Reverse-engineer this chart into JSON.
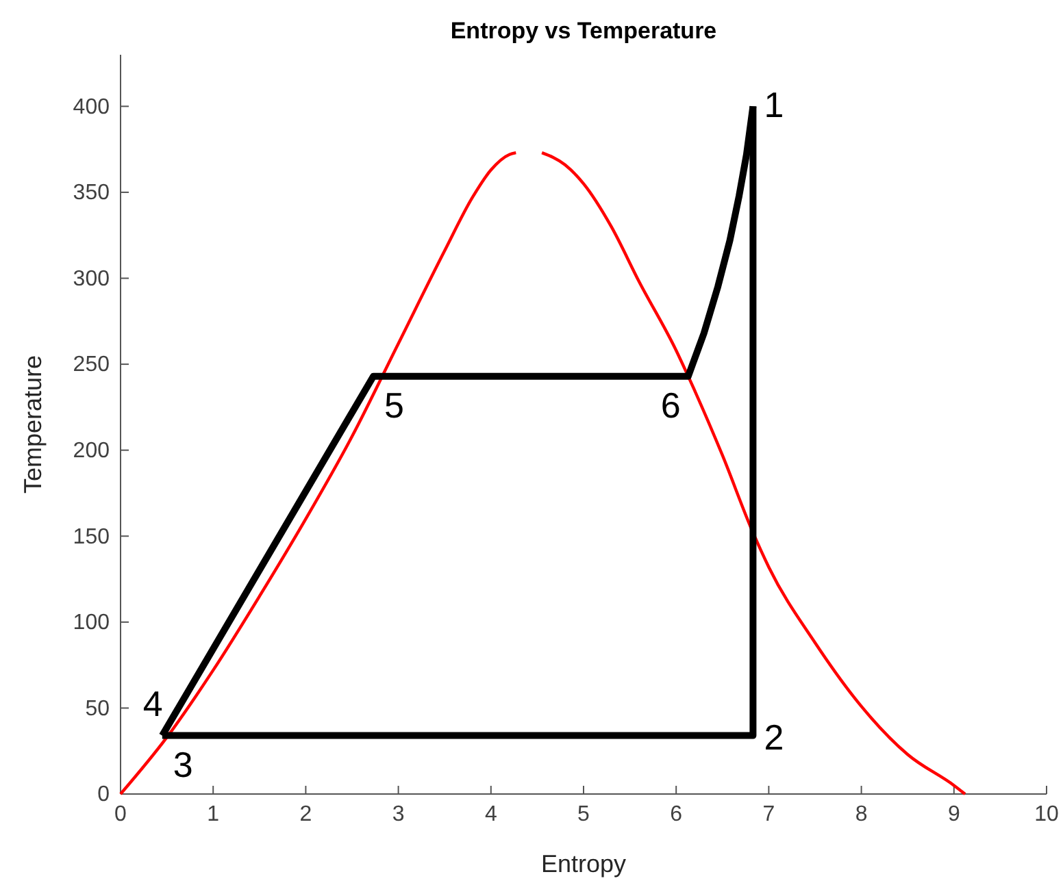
{
  "chart_data": {
    "type": "line",
    "title": "Entropy vs Temperature",
    "xlabel": "Entropy",
    "ylabel": "Temperature",
    "xlim": [
      0,
      10
    ],
    "xticks": [
      0,
      1,
      2,
      3,
      4,
      5,
      6,
      7,
      8,
      9,
      10
    ],
    "ylim": [
      0,
      430
    ],
    "yticks": [
      0,
      50,
      100,
      150,
      200,
      250,
      300,
      350,
      400
    ],
    "grid": false,
    "marker": "none",
    "line_style": "solid",
    "series": [
      {
        "color": "#ff0000",
        "x": [
          0,
          0.5,
          1,
          1.5,
          2,
          2.5,
          3,
          3.5,
          3.8,
          4.0,
          4.2,
          4.27,
          4.4,
          4.55,
          4.8,
          5,
          5.3,
          5.6,
          6,
          6.13,
          6.5,
          6.83,
          7,
          7.5,
          8,
          8.5,
          9,
          9.12
        ],
        "values": [
          0,
          33,
          72,
          115,
          160,
          208,
          262,
          316,
          347,
          363,
          372,
          373,
          null,
          373,
          366,
          355,
          330,
          298,
          258,
          243,
          197,
          152,
          132,
          88,
          51,
          23,
          5,
          0
        ]
      },
      {
        "color": "#000000",
        "x": [
          0.45,
          2.73,
          6.13,
          6.3,
          6.45,
          6.58,
          6.68,
          6.76,
          6.83
        ],
        "values": [
          34,
          243,
          243,
          268,
          295,
          322,
          348,
          372,
          400
        ]
      },
      {
        "color": "#000000",
        "x": [
          0.45,
          6.83,
          6.83
        ],
        "values": [
          34,
          34,
          400
        ]
      }
    ],
    "annotations": [
      {
        "text": "1",
        "x": 6.83,
        "y": 400
      },
      {
        "text": "2",
        "x": 6.83,
        "y": 34
      },
      {
        "text": "3",
        "x": 0.45,
        "y": 34
      },
      {
        "text": "4",
        "x": 0.45,
        "y": 36
      },
      {
        "text": "5",
        "x": 2.73,
        "y": 243
      },
      {
        "text": "6",
        "x": 6.13,
        "y": 243
      }
    ]
  }
}
